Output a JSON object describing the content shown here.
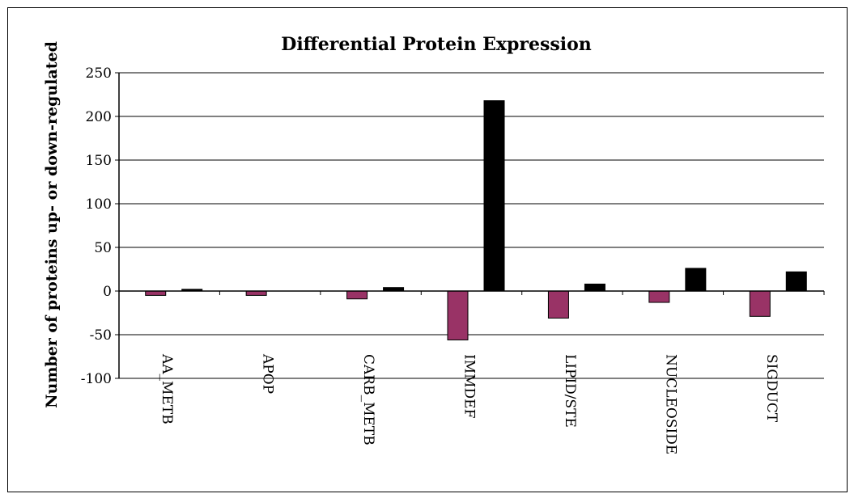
{
  "chart_data": {
    "type": "bar",
    "title": "Differential Protein Expression",
    "xlabel": "",
    "ylabel": "Number of proteins up- or down-regulated",
    "ylim": [
      -100,
      250
    ],
    "yticks": [
      250,
      200,
      150,
      100,
      50,
      0,
      -50,
      -100
    ],
    "ytick_labels": [
      "250",
      "200",
      "150",
      "100",
      "50",
      "0",
      "-50",
      "-100"
    ],
    "grid": true,
    "legend": "none",
    "categories": [
      "AA_METB",
      "APOP",
      "CARB_METB",
      "IMMDEF",
      "LIPID/STE",
      "NUCLEOSIDE",
      "SIGDUCT"
    ],
    "series": [
      {
        "color": "#993366",
        "values": [
          -5,
          -5,
          -9,
          -56,
          -31,
          -13,
          -29
        ]
      },
      {
        "color": "#000000",
        "values": [
          2,
          0,
          4,
          218,
          8,
          26,
          22
        ]
      }
    ]
  }
}
